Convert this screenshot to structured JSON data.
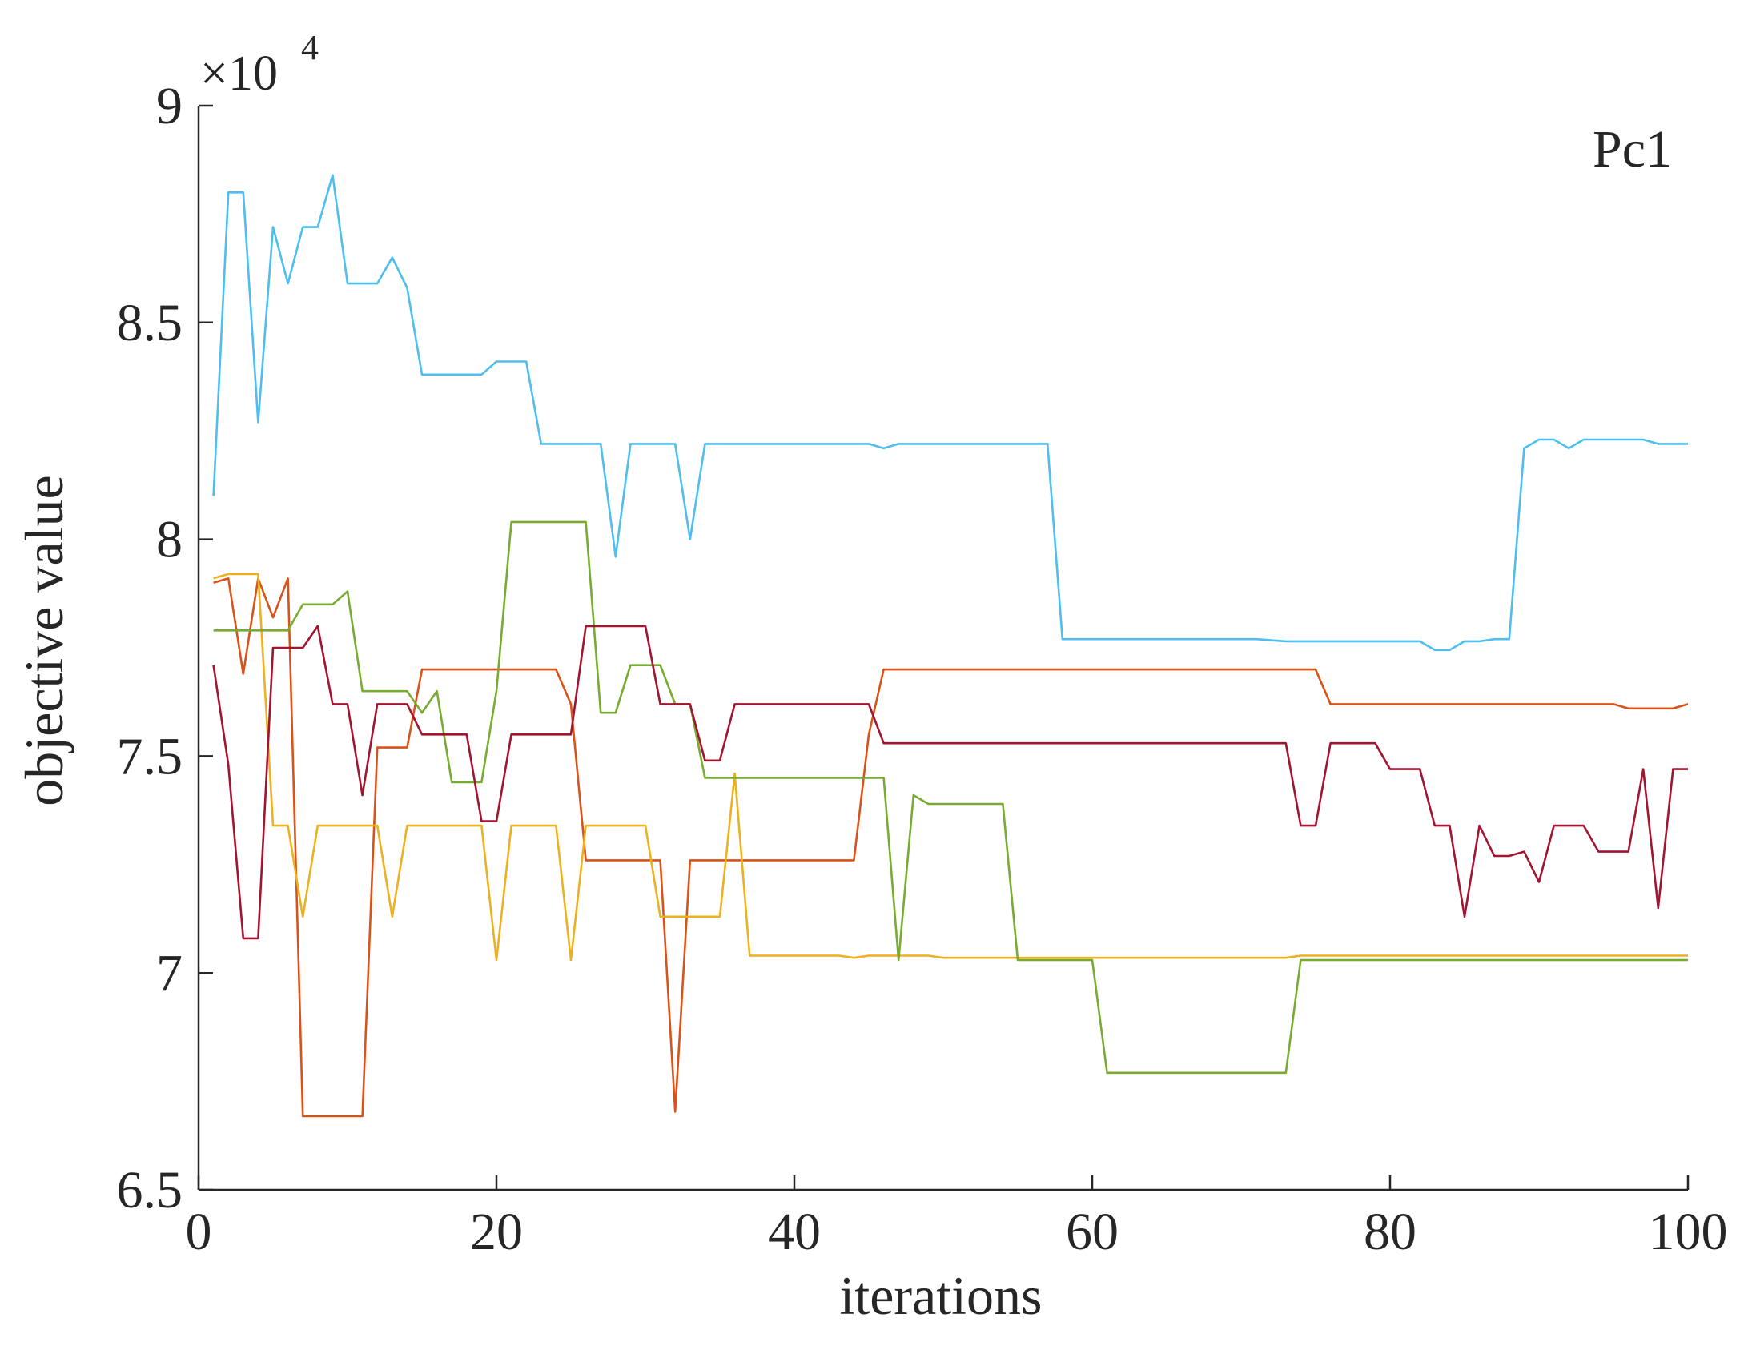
{
  "chart_data": {
    "type": "line",
    "title": "",
    "annotation": "Pc1",
    "xlabel": "iterations",
    "ylabel": "objective value",
    "y_exponent_label": "×10",
    "y_exponent_power": "4",
    "xlim": [
      0,
      100
    ],
    "ylim": [
      6.5,
      9
    ],
    "xticks": [
      0,
      20,
      40,
      60,
      80,
      100
    ],
    "yticks": [
      6.5,
      7,
      7.5,
      8,
      8.5,
      9
    ],
    "xtick_labels": [
      "0",
      "20",
      "40",
      "60",
      "80",
      "100"
    ],
    "ytick_labels": [
      "6.5",
      "7",
      "7.5",
      "8",
      "8.5",
      "9"
    ],
    "grid": false,
    "series": [
      {
        "name": "cyan",
        "color": "#4DBEEE",
        "points": [
          [
            1,
            8.1
          ],
          [
            2,
            8.8
          ],
          [
            3,
            8.8
          ],
          [
            4,
            8.27
          ],
          [
            5,
            8.72
          ],
          [
            6,
            8.59
          ],
          [
            7,
            8.72
          ],
          [
            8,
            8.72
          ],
          [
            9,
            8.84
          ],
          [
            10,
            8.59
          ],
          [
            12,
            8.59
          ],
          [
            13,
            8.65
          ],
          [
            14,
            8.58
          ],
          [
            15,
            8.38
          ],
          [
            19,
            8.38
          ],
          [
            20,
            8.41
          ],
          [
            22,
            8.41
          ],
          [
            23,
            8.22
          ],
          [
            27,
            8.22
          ],
          [
            28,
            7.96
          ],
          [
            29,
            8.22
          ],
          [
            32,
            8.22
          ],
          [
            33,
            8.0
          ],
          [
            34,
            8.22
          ],
          [
            45,
            8.22
          ],
          [
            46,
            8.21
          ],
          [
            47,
            8.22
          ],
          [
            57,
            8.22
          ],
          [
            58,
            7.77
          ],
          [
            71,
            7.77
          ],
          [
            73,
            7.765
          ],
          [
            82,
            7.765
          ],
          [
            83,
            7.745
          ],
          [
            84,
            7.745
          ],
          [
            85,
            7.765
          ],
          [
            86,
            7.765
          ],
          [
            87,
            7.77
          ],
          [
            88,
            7.77
          ],
          [
            89,
            8.21
          ],
          [
            90,
            8.23
          ],
          [
            91,
            8.23
          ],
          [
            92,
            8.21
          ],
          [
            93,
            8.23
          ],
          [
            97,
            8.23
          ],
          [
            98,
            8.22
          ],
          [
            100,
            8.22
          ]
        ]
      },
      {
        "name": "orange",
        "color": "#D95319",
        "points": [
          [
            1,
            7.9
          ],
          [
            2,
            7.91
          ],
          [
            3,
            7.69
          ],
          [
            4,
            7.91
          ],
          [
            5,
            7.82
          ],
          [
            6,
            7.91
          ],
          [
            7,
            6.67
          ],
          [
            11,
            6.67
          ],
          [
            12,
            7.52
          ],
          [
            14,
            7.52
          ],
          [
            15,
            7.7
          ],
          [
            24,
            7.7
          ],
          [
            25,
            7.62
          ],
          [
            26,
            7.26
          ],
          [
            31,
            7.26
          ],
          [
            32,
            6.68
          ],
          [
            33,
            7.26
          ],
          [
            44,
            7.26
          ],
          [
            45,
            7.55
          ],
          [
            46,
            7.7
          ],
          [
            75,
            7.7
          ],
          [
            76,
            7.62
          ],
          [
            95,
            7.62
          ],
          [
            96,
            7.61
          ],
          [
            99,
            7.61
          ],
          [
            100,
            7.62
          ]
        ]
      },
      {
        "name": "yellow",
        "color": "#EDB120",
        "points": [
          [
            1,
            7.91
          ],
          [
            2,
            7.92
          ],
          [
            4,
            7.92
          ],
          [
            5,
            7.34
          ],
          [
            6,
            7.34
          ],
          [
            7,
            7.13
          ],
          [
            8,
            7.34
          ],
          [
            12,
            7.34
          ],
          [
            13,
            7.13
          ],
          [
            14,
            7.34
          ],
          [
            19,
            7.34
          ],
          [
            20,
            7.03
          ],
          [
            21,
            7.34
          ],
          [
            24,
            7.34
          ],
          [
            25,
            7.03
          ],
          [
            26,
            7.34
          ],
          [
            30,
            7.34
          ],
          [
            31,
            7.13
          ],
          [
            35,
            7.13
          ],
          [
            36,
            7.46
          ],
          [
            37,
            7.04
          ],
          [
            43,
            7.04
          ],
          [
            44,
            7.035
          ],
          [
            45,
            7.04
          ],
          [
            49,
            7.04
          ],
          [
            50,
            7.035
          ],
          [
            73,
            7.035
          ],
          [
            74,
            7.04
          ],
          [
            100,
            7.04
          ]
        ]
      },
      {
        "name": "green",
        "color": "#77AC30",
        "points": [
          [
            1,
            7.79
          ],
          [
            6,
            7.79
          ],
          [
            7,
            7.85
          ],
          [
            9,
            7.85
          ],
          [
            10,
            7.88
          ],
          [
            11,
            7.65
          ],
          [
            14,
            7.65
          ],
          [
            15,
            7.6
          ],
          [
            16,
            7.65
          ],
          [
            17,
            7.44
          ],
          [
            19,
            7.44
          ],
          [
            20,
            7.65
          ],
          [
            21,
            8.04
          ],
          [
            26,
            8.04
          ],
          [
            27,
            7.6
          ],
          [
            28,
            7.6
          ],
          [
            29,
            7.71
          ],
          [
            31,
            7.71
          ],
          [
            32,
            7.62
          ],
          [
            33,
            7.62
          ],
          [
            34,
            7.45
          ],
          [
            46,
            7.45
          ],
          [
            47,
            7.03
          ],
          [
            48,
            7.41
          ],
          [
            49,
            7.39
          ],
          [
            54,
            7.39
          ],
          [
            55,
            7.03
          ],
          [
            60,
            7.03
          ],
          [
            61,
            6.77
          ],
          [
            73,
            6.77
          ],
          [
            74,
            7.03
          ],
          [
            100,
            7.03
          ]
        ]
      },
      {
        "name": "dark-red",
        "color": "#A2142F",
        "points": [
          [
            1,
            7.71
          ],
          [
            2,
            7.48
          ],
          [
            3,
            7.08
          ],
          [
            4,
            7.08
          ],
          [
            5,
            7.75
          ],
          [
            7,
            7.75
          ],
          [
            8,
            7.8
          ],
          [
            9,
            7.62
          ],
          [
            10,
            7.62
          ],
          [
            11,
            7.41
          ],
          [
            12,
            7.62
          ],
          [
            14,
            7.62
          ],
          [
            15,
            7.55
          ],
          [
            18,
            7.55
          ],
          [
            19,
            7.35
          ],
          [
            20,
            7.35
          ],
          [
            21,
            7.55
          ],
          [
            25,
            7.55
          ],
          [
            26,
            7.8
          ],
          [
            30,
            7.8
          ],
          [
            31,
            7.62
          ],
          [
            33,
            7.62
          ],
          [
            34,
            7.49
          ],
          [
            35,
            7.49
          ],
          [
            36,
            7.62
          ],
          [
            45,
            7.62
          ],
          [
            46,
            7.53
          ],
          [
            73,
            7.53
          ],
          [
            74,
            7.34
          ],
          [
            75,
            7.34
          ],
          [
            76,
            7.53
          ],
          [
            79,
            7.53
          ],
          [
            80,
            7.47
          ],
          [
            82,
            7.47
          ],
          [
            83,
            7.34
          ],
          [
            84,
            7.34
          ],
          [
            85,
            7.13
          ],
          [
            86,
            7.34
          ],
          [
            87,
            7.27
          ],
          [
            88,
            7.27
          ],
          [
            89,
            7.28
          ],
          [
            90,
            7.21
          ],
          [
            91,
            7.34
          ],
          [
            93,
            7.34
          ],
          [
            94,
            7.28
          ],
          [
            96,
            7.28
          ],
          [
            97,
            7.47
          ],
          [
            98,
            7.15
          ],
          [
            99,
            7.47
          ],
          [
            100,
            7.47
          ]
        ]
      }
    ]
  }
}
